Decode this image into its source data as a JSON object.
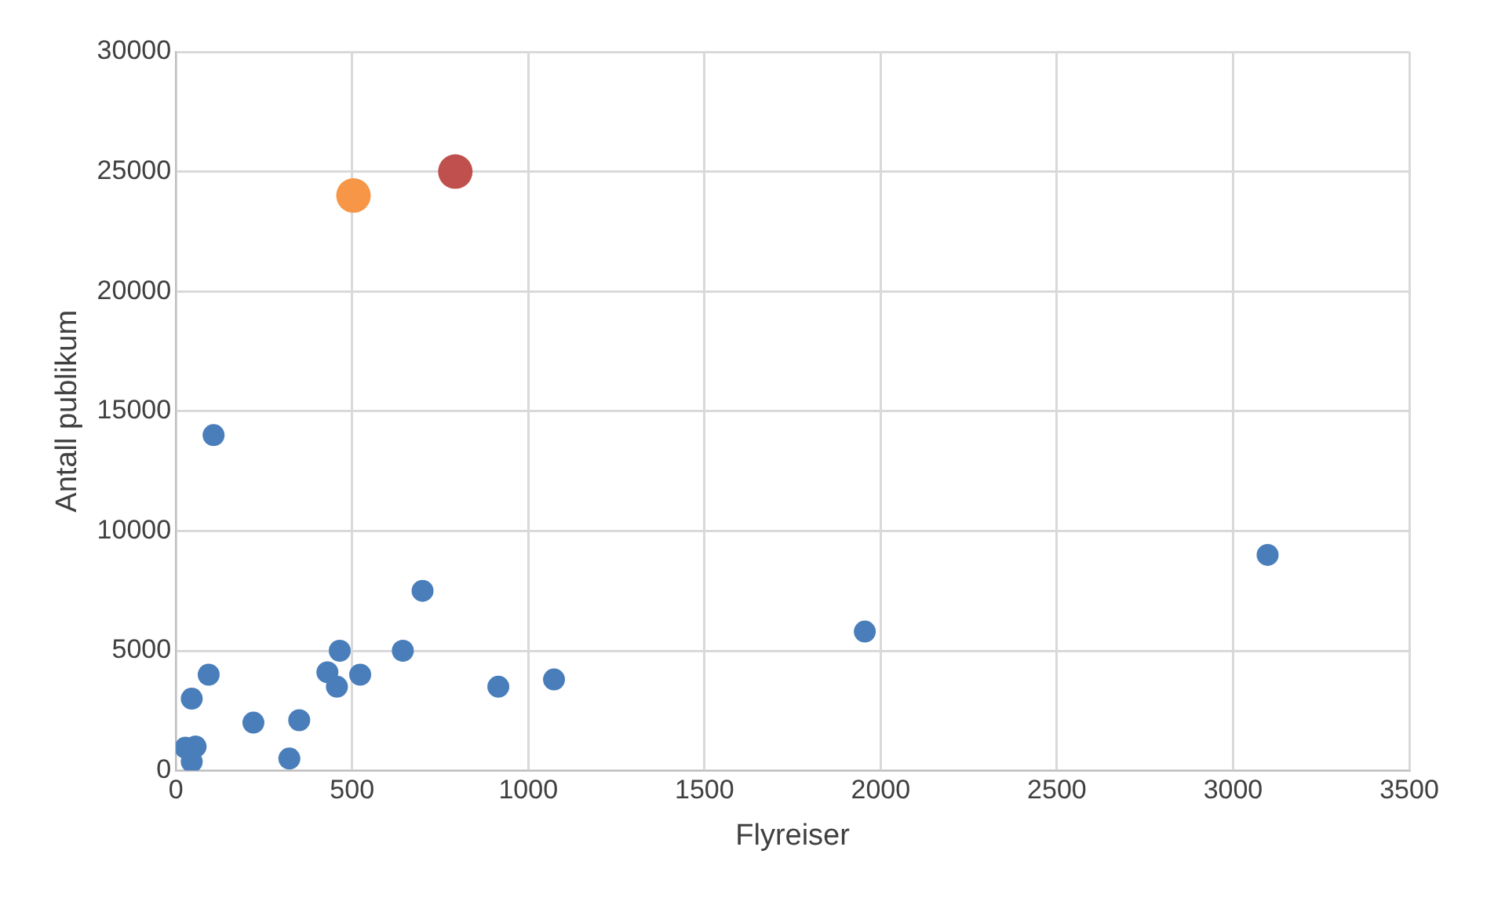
{
  "chart_data": {
    "type": "scatter",
    "xlabel": "Flyreiser",
    "ylabel": "Antall publikum",
    "xlim": [
      0,
      3500
    ],
    "xticks": [
      0,
      500,
      1000,
      1500,
      2000,
      2500,
      3000,
      3500
    ],
    "ylim": [
      0,
      30000
    ],
    "yticks": [
      0,
      5000,
      10000,
      15000,
      20000,
      25000,
      30000
    ],
    "grid": true,
    "legend": false,
    "marker": "circle",
    "series": [
      {
        "color": "#4a7ebb",
        "x": [
          93,
          45,
          220,
          350,
          322,
          465,
          430,
          457,
          523,
          644,
          915,
          1073,
          27,
          56,
          45,
          107,
          700,
          1955,
          3098
        ],
        "values": [
          4000,
          3000,
          2000,
          2100,
          500,
          5000,
          4100,
          3500,
          4000,
          5000,
          3500,
          3800,
          950,
          1000,
          370,
          14000,
          7500,
          5800,
          9000
        ]
      },
      {
        "color": "#f79646",
        "x": [
          504
        ],
        "values": [
          24000
        ]
      },
      {
        "color": "#c0504d",
        "x": [
          793
        ],
        "values": [
          25000
        ]
      }
    ]
  }
}
